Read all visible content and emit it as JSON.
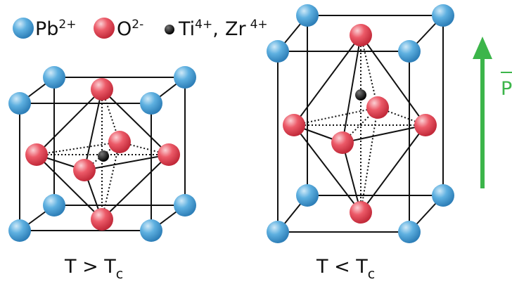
{
  "legend": {
    "items": [
      {
        "symbol": "Pb",
        "charge": "2+"
      },
      {
        "symbol": "O",
        "charge": "2-"
      },
      {
        "symbol": "Ti",
        "charge": "4+"
      },
      {
        "symbol": "Zr",
        "charge": "4+"
      }
    ],
    "separator": ","
  },
  "cells": [
    {
      "label": "T > T",
      "subscript": "c"
    },
    {
      "label": "T < T",
      "subscript": "c"
    }
  ],
  "polarization": {
    "label": "P"
  }
}
